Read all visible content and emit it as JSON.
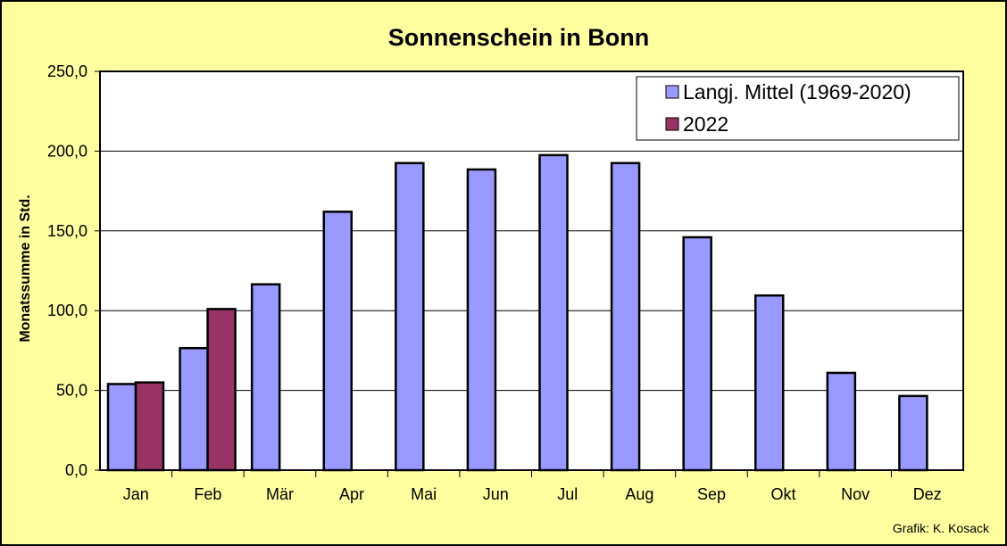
{
  "chart_data": {
    "type": "bar",
    "title": "Sonnenschein in Bonn",
    "ylabel": "Monatssumme in Std.",
    "xlabel": "",
    "ylim": [
      0,
      250
    ],
    "yticks": [
      "0,0",
      "50,0",
      "100,0",
      "150,0",
      "200,0",
      "250,0"
    ],
    "categories": [
      "Jan",
      "Feb",
      "Mär",
      "Apr",
      "Mai",
      "Jun",
      "Jul",
      "Aug",
      "Sep",
      "Okt",
      "Nov",
      "Dez"
    ],
    "series": [
      {
        "name": "Langj. Mittel (1969-2020)",
        "color": "#9999ff",
        "values": [
          54,
          76.5,
          116.5,
          162,
          192.5,
          188.5,
          197.5,
          192.5,
          146,
          109.5,
          61,
          46.5
        ]
      },
      {
        "name": "2022",
        "color": "#993366",
        "values": [
          55,
          101,
          null,
          null,
          null,
          null,
          null,
          null,
          null,
          null,
          null,
          null
        ]
      }
    ],
    "grid": true,
    "legend_position": "top-right",
    "plot_background": "#ffffff",
    "page_background": "#ffffa0"
  },
  "credit": "Grafik:  K. Kosack"
}
